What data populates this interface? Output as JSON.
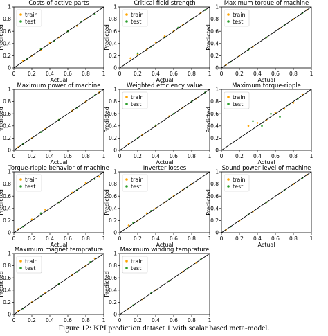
{
  "caption": "Figure 12: KPI prediction dataset 1 with scalar based meta-model.",
  "colors": {
    "train": "#ffa500",
    "test": "#2e9e2e",
    "diagonal": "#000000"
  },
  "chart_data": [
    {
      "type": "scatter",
      "title": "Costs of active parts",
      "xlabel": "Actual",
      "ylabel": "Predicted",
      "xlim": [
        0,
        1
      ],
      "ylim": [
        0,
        1
      ],
      "xticks": [
        "0",
        "0.2",
        "0.4",
        "0.6",
        "0.8",
        "1"
      ],
      "yticks": [
        "0",
        "0.2",
        "0.4",
        "0.6",
        "0.8",
        "1"
      ],
      "legend": {
        "position": "upper-left",
        "entries": [
          "train",
          "test"
        ]
      },
      "series": [
        {
          "name": "train",
          "x": [
            0.1,
            0.2,
            0.3,
            0.4,
            0.5,
            0.6,
            0.7,
            0.8
          ],
          "y": [
            0.12,
            0.2,
            0.3,
            0.41,
            0.5,
            0.6,
            0.69,
            0.8
          ]
        },
        {
          "name": "test",
          "x": [
            0.15,
            0.3,
            0.45,
            0.6,
            0.75,
            0.9
          ],
          "y": [
            0.15,
            0.31,
            0.44,
            0.6,
            0.76,
            0.88
          ]
        }
      ]
    },
    {
      "type": "scatter",
      "title": "Critical field strength",
      "xlabel": "Actual",
      "ylabel": "Predicted",
      "xlim": [
        0,
        1
      ],
      "ylim": [
        0,
        1
      ],
      "xticks": [
        "0",
        "0.2",
        "0.4",
        "0.6",
        "0.8",
        "1"
      ],
      "yticks": [
        "0",
        "0.2",
        "0.4",
        "0.6",
        "0.8",
        "1"
      ],
      "legend": {
        "position": "upper-left",
        "entries": [
          "train",
          "test"
        ]
      },
      "series": [
        {
          "name": "train",
          "x": [
            0.12,
            0.2,
            0.3,
            0.4,
            0.5,
            0.6,
            0.7,
            0.8,
            0.9
          ],
          "y": [
            0.16,
            0.22,
            0.3,
            0.42,
            0.52,
            0.6,
            0.7,
            0.8,
            0.9
          ]
        },
        {
          "name": "test",
          "x": [
            0.2,
            0.35,
            0.5,
            0.65,
            0.8,
            0.95
          ],
          "y": [
            0.24,
            0.35,
            0.5,
            0.66,
            0.8,
            0.95
          ]
        }
      ]
    },
    {
      "type": "scatter",
      "title": "Maximum torque of machine",
      "xlabel": "Actual",
      "ylabel": "Predicted",
      "xlim": [
        0,
        1
      ],
      "ylim": [
        0,
        1
      ],
      "xticks": [
        "0",
        "0.2",
        "0.4",
        "0.6",
        "0.8",
        "1"
      ],
      "yticks": [
        "0",
        "0.2",
        "0.4",
        "0.6",
        "0.8",
        "1"
      ],
      "legend": {
        "position": "upper-left",
        "entries": [
          "train",
          "test"
        ]
      },
      "series": [
        {
          "name": "train",
          "x": [
            0.05,
            0.2,
            0.35,
            0.5,
            0.65,
            0.8,
            0.95
          ],
          "y": [
            0.05,
            0.2,
            0.35,
            0.5,
            0.65,
            0.8,
            0.95
          ]
        },
        {
          "name": "test",
          "x": [
            0.1,
            0.3,
            0.5,
            0.7,
            0.9
          ],
          "y": [
            0.1,
            0.3,
            0.5,
            0.7,
            0.9
          ]
        }
      ]
    },
    {
      "type": "scatter",
      "title": "Maximum power of machine",
      "xlabel": "Actual",
      "ylabel": "Predicted",
      "xlim": [
        0,
        1
      ],
      "ylim": [
        0,
        1
      ],
      "xticks": [
        "0",
        "0.2",
        "0.4",
        "0.6",
        "0.8",
        "1"
      ],
      "yticks": [
        "0",
        "0.2",
        "0.4",
        "0.6",
        "0.8",
        "1"
      ],
      "legend": {
        "position": "none",
        "entries": []
      },
      "series": [
        {
          "name": "train",
          "x": [
            0.05,
            0.2,
            0.35,
            0.5,
            0.65,
            0.8,
            0.95
          ],
          "y": [
            0.05,
            0.2,
            0.35,
            0.5,
            0.65,
            0.8,
            0.95
          ]
        },
        {
          "name": "test",
          "x": [
            0.1,
            0.3,
            0.5,
            0.7,
            0.9
          ],
          "y": [
            0.1,
            0.3,
            0.5,
            0.7,
            0.9
          ]
        }
      ]
    },
    {
      "type": "scatter",
      "title": "Weighted efficiency value",
      "xlabel": "Actual",
      "ylabel": "Predicted",
      "xlim": [
        0,
        1
      ],
      "ylim": [
        0,
        1
      ],
      "xticks": [
        "0",
        "0.2",
        "0.4",
        "0.6",
        "0.8",
        "1"
      ],
      "yticks": [
        "0",
        "0.2",
        "0.4",
        "0.6",
        "0.8",
        "1"
      ],
      "legend": {
        "position": "upper-left",
        "entries": [
          "train",
          "test"
        ]
      },
      "series": [
        {
          "name": "train",
          "x": [
            0.1,
            0.25,
            0.4,
            0.55,
            0.7,
            0.85
          ],
          "y": [
            0.11,
            0.25,
            0.4,
            0.56,
            0.7,
            0.85
          ]
        },
        {
          "name": "test",
          "x": [
            0.2,
            0.4,
            0.6,
            0.8,
            0.95
          ],
          "y": [
            0.2,
            0.41,
            0.6,
            0.8,
            0.95
          ]
        }
      ]
    },
    {
      "type": "scatter",
      "title": "Maximum torque-ripple",
      "xlabel": "Actual",
      "ylabel": "Predicted",
      "xlim": [
        0,
        1
      ],
      "ylim": [
        0,
        1
      ],
      "xticks": [
        "0",
        "0.2",
        "0.4",
        "0.6",
        "0.8",
        "1"
      ],
      "yticks": [
        "0",
        "0.2",
        "0.4",
        "0.6",
        "0.8",
        "1"
      ],
      "legend": {
        "position": "upper-left",
        "entries": [
          "train",
          "test"
        ]
      },
      "series": [
        {
          "name": "train",
          "x": [
            0.3,
            0.4,
            0.5,
            0.6,
            0.7,
            0.8,
            0.9
          ],
          "y": [
            0.4,
            0.45,
            0.5,
            0.62,
            0.68,
            0.78,
            0.92
          ]
        },
        {
          "name": "test",
          "x": [
            0.35,
            0.45,
            0.55,
            0.65,
            0.75,
            0.85
          ],
          "y": [
            0.48,
            0.4,
            0.6,
            0.55,
            0.75,
            0.85
          ]
        }
      ]
    },
    {
      "type": "scatter",
      "title": "Torque-ripple behavior of machine",
      "xlabel": "Actual",
      "ylabel": "Predicted",
      "xlim": [
        0,
        1
      ],
      "ylim": [
        0,
        1
      ],
      "xticks": [
        "0",
        "0.2",
        "0.4",
        "0.6",
        "0.8",
        "1"
      ],
      "yticks": [
        "0",
        "0.2",
        "0.4",
        "0.6",
        "0.8",
        "1"
      ],
      "legend": {
        "position": "upper-left",
        "entries": [
          "train",
          "test"
        ]
      },
      "series": [
        {
          "name": "train",
          "x": [
            0.05,
            0.2,
            0.35,
            0.5,
            0.65,
            0.8,
            0.95
          ],
          "y": [
            0.06,
            0.22,
            0.38,
            0.5,
            0.66,
            0.82,
            0.92
          ]
        },
        {
          "name": "test",
          "x": [
            0.1,
            0.3,
            0.5,
            0.7,
            0.9
          ],
          "y": [
            0.1,
            0.32,
            0.5,
            0.7,
            0.88
          ]
        }
      ]
    },
    {
      "type": "scatter",
      "title": "Inverter losses",
      "xlabel": "Actual",
      "ylabel": "Predicted",
      "xlim": [
        0,
        1
      ],
      "ylim": [
        0,
        1
      ],
      "xticks": [
        "0",
        "0.2",
        "0.4",
        "0.6",
        "0.8",
        "1"
      ],
      "yticks": [
        "0",
        "0.2",
        "0.4",
        "0.6",
        "0.8",
        "1"
      ],
      "legend": {
        "position": "upper-left",
        "entries": [
          "train",
          "test"
        ]
      },
      "series": [
        {
          "name": "train",
          "x": [
            0.1,
            0.2,
            0.3,
            0.4,
            0.5,
            0.6,
            0.7,
            0.8
          ],
          "y": [
            0.12,
            0.2,
            0.32,
            0.4,
            0.5,
            0.6,
            0.7,
            0.8
          ]
        },
        {
          "name": "test",
          "x": [
            0.15,
            0.35,
            0.55,
            0.75
          ],
          "y": [
            0.16,
            0.36,
            0.55,
            0.74
          ]
        }
      ]
    },
    {
      "type": "scatter",
      "title": "Sound power level of machine",
      "xlabel": "Actual",
      "ylabel": "Predicted",
      "xlim": [
        0,
        1
      ],
      "ylim": [
        0,
        1
      ],
      "xticks": [
        "0",
        "0.2",
        "0.4",
        "0.6",
        "0.8",
        "1"
      ],
      "yticks": [
        "0",
        "0.2",
        "0.4",
        "0.6",
        "0.8",
        "1"
      ],
      "legend": {
        "position": "upper-left",
        "entries": [
          "train",
          "test"
        ]
      },
      "series": [
        {
          "name": "train",
          "x": [
            0.05,
            0.2,
            0.35,
            0.5,
            0.65,
            0.8,
            0.95
          ],
          "y": [
            0.05,
            0.2,
            0.35,
            0.5,
            0.65,
            0.8,
            0.95
          ]
        },
        {
          "name": "test",
          "x": [
            0.1,
            0.3,
            0.5,
            0.7,
            0.9
          ],
          "y": [
            0.1,
            0.3,
            0.5,
            0.7,
            0.9
          ]
        }
      ]
    },
    {
      "type": "scatter",
      "title": "Maximum magnet temprature",
      "xlabel": "Actual",
      "ylabel": "Predicted",
      "xlim": [
        0,
        1
      ],
      "ylim": [
        0,
        1
      ],
      "xticks": [
        "0",
        "0.2",
        "0.4",
        "0.6",
        "0.8",
        "1"
      ],
      "yticks": [
        "0",
        "0.2",
        "0.4",
        "0.6",
        "0.8",
        "1"
      ],
      "legend": {
        "position": "upper-left",
        "entries": [
          "train",
          "test"
        ]
      },
      "series": [
        {
          "name": "train",
          "x": [
            0.05,
            0.2,
            0.35,
            0.5,
            0.65,
            0.8,
            0.9
          ],
          "y": [
            0.06,
            0.2,
            0.36,
            0.5,
            0.65,
            0.8,
            0.92
          ]
        },
        {
          "name": "test",
          "x": [
            0.1,
            0.3,
            0.5,
            0.7,
            0.85
          ],
          "y": [
            0.1,
            0.3,
            0.5,
            0.7,
            0.86
          ]
        }
      ]
    },
    {
      "type": "scatter",
      "title": "Maximum winding temprature",
      "xlabel": "Actual",
      "ylabel": "Predicted",
      "xlim": [
        0,
        1
      ],
      "ylim": [
        0,
        1
      ],
      "xticks": [
        "0",
        "0.2",
        "0.4",
        "0.6",
        "0.8",
        "1"
      ],
      "yticks": [
        "0",
        "0.2",
        "0.4",
        "0.6",
        "0.8",
        "1"
      ],
      "legend": {
        "position": "upper-left",
        "entries": [
          "train",
          "test"
        ]
      },
      "series": [
        {
          "name": "train",
          "x": [
            0.1,
            0.25,
            0.4,
            0.55,
            0.7,
            0.85
          ],
          "y": [
            0.1,
            0.25,
            0.4,
            0.55,
            0.7,
            0.85
          ]
        },
        {
          "name": "test",
          "x": [
            0.15,
            0.35,
            0.55,
            0.75,
            0.9
          ],
          "y": [
            0.15,
            0.35,
            0.55,
            0.75,
            0.9
          ]
        }
      ]
    }
  ]
}
